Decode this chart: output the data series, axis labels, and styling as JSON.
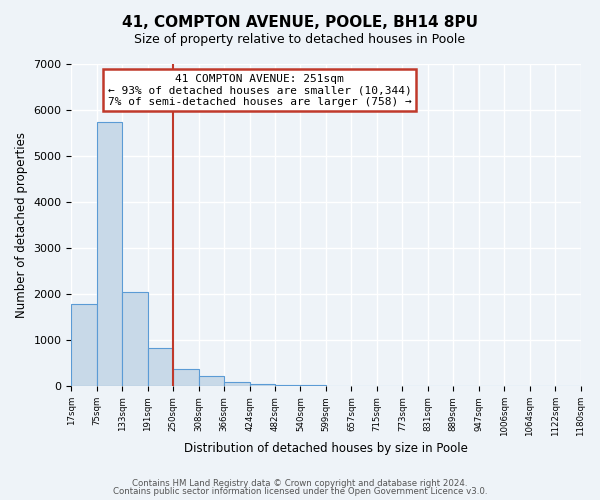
{
  "title1": "41, COMPTON AVENUE, POOLE, BH14 8PU",
  "title2": "Size of property relative to detached houses in Poole",
  "xlabel": "Distribution of detached houses by size in Poole",
  "ylabel": "Number of detached properties",
  "bar_heights": [
    1780,
    5750,
    2050,
    830,
    370,
    220,
    105,
    60,
    40,
    20,
    10,
    0,
    0,
    0,
    0,
    0,
    0,
    0,
    0,
    0
  ],
  "bin_labels": [
    "17sqm",
    "75sqm",
    "133sqm",
    "191sqm",
    "250sqm",
    "308sqm",
    "366sqm",
    "424sqm",
    "482sqm",
    "540sqm",
    "599sqm",
    "657sqm",
    "715sqm",
    "773sqm",
    "831sqm",
    "889sqm",
    "947sqm",
    "1006sqm",
    "1064sqm",
    "1122sqm",
    "1180sqm"
  ],
  "bar_color": "#c8d9e8",
  "bar_edge_color": "#5b9bd5",
  "vline_index": 4,
  "vline_color": "#c0392b",
  "box_edge_color": "#c0392b",
  "annotation_title": "41 COMPTON AVENUE: 251sqm",
  "annotation_line1": "← 93% of detached houses are smaller (10,344)",
  "annotation_line2": "7% of semi-detached houses are larger (758) →",
  "ylim": [
    0,
    7000
  ],
  "yticks": [
    0,
    1000,
    2000,
    3000,
    4000,
    5000,
    6000,
    7000
  ],
  "footer1": "Contains HM Land Registry data © Crown copyright and database right 2024.",
  "footer2": "Contains public sector information licensed under the Open Government Licence v3.0.",
  "background_color": "#eef3f8",
  "plot_bg_color": "#eef3f8",
  "grid_color": "#ffffff"
}
